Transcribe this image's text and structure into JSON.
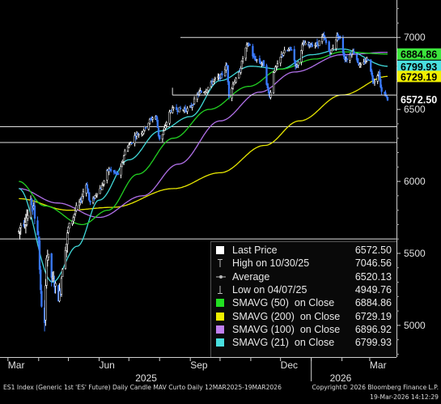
{
  "chart_data": {
    "type": "candlestick",
    "title": "",
    "xlabel": "",
    "ylabel": "",
    "ylim": [
      4780,
      7260
    ],
    "y_ticks": [
      5000,
      5500,
      6000,
      6500,
      7000
    ],
    "x_ticks": [
      "Mar",
      "Jun",
      "Sep",
      "Dec",
      "Mar"
    ],
    "year_labels": [
      "2025",
      "2026"
    ],
    "price_labels": [
      {
        "value": 6884.86,
        "text": "6884.86",
        "color": "#3ce63c"
      },
      {
        "value": 6799.93,
        "text": "6799.93",
        "color": "#49e0e0"
      },
      {
        "value": 6729.19,
        "text": "6729.19",
        "color": "#f0f000"
      },
      {
        "value": 6572.5,
        "text": "6572.50",
        "color": "#ffffff"
      }
    ],
    "reference_levels": [
      6380,
      6270,
      5600
    ],
    "box_levels": {
      "top": 7000,
      "bottom": 6600
    },
    "price_anchors": [
      [
        "2025-03-12",
        5650
      ],
      [
        "2025-03-14",
        5700
      ],
      [
        "2025-03-20",
        5750
      ],
      [
        "2025-03-25",
        5850
      ],
      [
        "2025-03-31",
        5650
      ],
      [
        "2025-04-04",
        5150
      ],
      [
        "2025-04-07",
        5000
      ],
      [
        "2025-04-09",
        5500
      ],
      [
        "2025-04-16",
        5300
      ],
      [
        "2025-04-21",
        5200
      ],
      [
        "2025-04-28",
        5550
      ],
      [
        "2025-05-02",
        5700
      ],
      [
        "2025-05-12",
        5850
      ],
      [
        "2025-05-19",
        5980
      ],
      [
        "2025-05-23",
        5850
      ],
      [
        "2025-06-02",
        5950
      ],
      [
        "2025-06-11",
        6080
      ],
      [
        "2025-06-20",
        6050
      ],
      [
        "2025-06-30",
        6250
      ],
      [
        "2025-07-10",
        6330
      ],
      [
        "2025-07-28",
        6450
      ],
      [
        "2025-08-01",
        6300
      ],
      [
        "2025-08-14",
        6500
      ],
      [
        "2025-08-29",
        6500
      ],
      [
        "2025-09-12",
        6620
      ],
      [
        "2025-09-30",
        6720
      ],
      [
        "2025-10-08",
        6800
      ],
      [
        "2025-10-10",
        6600
      ],
      [
        "2025-10-16",
        6700
      ],
      [
        "2025-10-30",
        6950
      ],
      [
        "2025-11-05",
        6850
      ],
      [
        "2025-11-13",
        6820
      ],
      [
        "2025-11-20",
        6600
      ],
      [
        "2025-11-25",
        6780
      ],
      [
        "2025-12-05",
        6900
      ],
      [
        "2025-12-12",
        6920
      ],
      [
        "2025-12-17",
        6800
      ],
      [
        "2025-12-24",
        6950
      ],
      [
        "2026-01-06",
        6950
      ],
      [
        "2026-01-13",
        7000
      ],
      [
        "2026-01-20",
        6900
      ],
      [
        "2026-01-28",
        7010
      ],
      [
        "2026-02-05",
        6850
      ],
      [
        "2026-02-12",
        6900
      ],
      [
        "2026-02-20",
        6800
      ],
      [
        "2026-02-27",
        6850
      ],
      [
        "2026-03-05",
        6700
      ],
      [
        "2026-03-10",
        6750
      ],
      [
        "2026-03-13",
        6620
      ],
      [
        "2026-03-17",
        6600
      ],
      [
        "2026-03-19",
        6572.5
      ]
    ],
    "sma_curves": {
      "sma50": [
        [
          "2025-03-12",
          6000
        ],
        [
          "2025-04-07",
          5830
        ],
        [
          "2025-05-15",
          5700
        ],
        [
          "2025-06-10",
          5800
        ],
        [
          "2025-07-10",
          6050
        ],
        [
          "2025-08-15",
          6300
        ],
        [
          "2025-09-20",
          6500
        ],
        [
          "2025-10-30",
          6660
        ],
        [
          "2025-12-01",
          6780
        ],
        [
          "2026-01-05",
          6850
        ],
        [
          "2026-02-01",
          6900
        ],
        [
          "2026-03-19",
          6884.86
        ]
      ],
      "sma200": [
        [
          "2025-03-12",
          5880
        ],
        [
          "2025-05-01",
          5800
        ],
        [
          "2025-06-15",
          5820
        ],
        [
          "2025-08-15",
          5950
        ],
        [
          "2025-10-01",
          6060
        ],
        [
          "2025-11-15",
          6250
        ],
        [
          "2025-12-20",
          6420
        ],
        [
          "2026-02-01",
          6600
        ],
        [
          "2026-03-19",
          6729.19
        ]
      ],
      "sma100": [
        [
          "2025-03-12",
          5950
        ],
        [
          "2025-04-20",
          5850
        ],
        [
          "2025-06-01",
          5750
        ],
        [
          "2025-07-15",
          5900
        ],
        [
          "2025-08-20",
          6120
        ],
        [
          "2025-10-01",
          6420
        ],
        [
          "2025-11-10",
          6620
        ],
        [
          "2025-12-15",
          6760
        ],
        [
          "2026-02-01",
          6880
        ],
        [
          "2026-03-19",
          6896.92
        ]
      ],
      "sma21": [
        [
          "2025-03-12",
          5950
        ],
        [
          "2025-04-15",
          5300
        ],
        [
          "2025-05-10",
          5550
        ],
        [
          "2025-06-01",
          5870
        ],
        [
          "2025-07-01",
          6150
        ],
        [
          "2025-08-01",
          6350
        ],
        [
          "2025-09-01",
          6450
        ],
        [
          "2025-10-01",
          6700
        ],
        [
          "2025-11-01",
          6800
        ],
        [
          "2025-12-01",
          6780
        ],
        [
          "2026-01-01",
          6880
        ],
        [
          "2026-02-01",
          6920
        ],
        [
          "2026-03-19",
          6799.93
        ]
      ]
    }
  },
  "legend": [
    {
      "label": "Last Price",
      "value": "6572.50",
      "color": "#ffffff",
      "marker": "box"
    },
    {
      "label": "High on 10/30/25",
      "value": "7046.56",
      "color": "#bbbbbb",
      "marker": "high"
    },
    {
      "label": "Average",
      "value": "6520.13",
      "color": "#bbbbbb",
      "marker": "avg"
    },
    {
      "label": "Low on 04/07/25",
      "value": "4949.76",
      "color": "#bbbbbb",
      "marker": "low"
    },
    {
      "label": "SMAVG (50)  on Close",
      "value": "6884.86",
      "color": "#22e022",
      "marker": "box"
    },
    {
      "label": "SMAVG (200)  on Close",
      "value": "6729.19",
      "color": "#f0f000",
      "marker": "box"
    },
    {
      "label": "SMAVG (100)  on Close",
      "value": "6896.92",
      "color": "#c080f0",
      "marker": "box"
    },
    {
      "label": "SMAVG (21)  on Close",
      "value": "6799.93",
      "color": "#49e0e0",
      "marker": "box"
    }
  ],
  "footer": {
    "description": "ES1 Index (Generic 1st 'ES' Future) Daily Candle MAV Curto Daily 12MAR2025-19MAR2026",
    "copyright": "Copyright© 2026 Bloomberg Finance L.P.",
    "timestamp": "19-Mar-2026 14:12:29"
  }
}
